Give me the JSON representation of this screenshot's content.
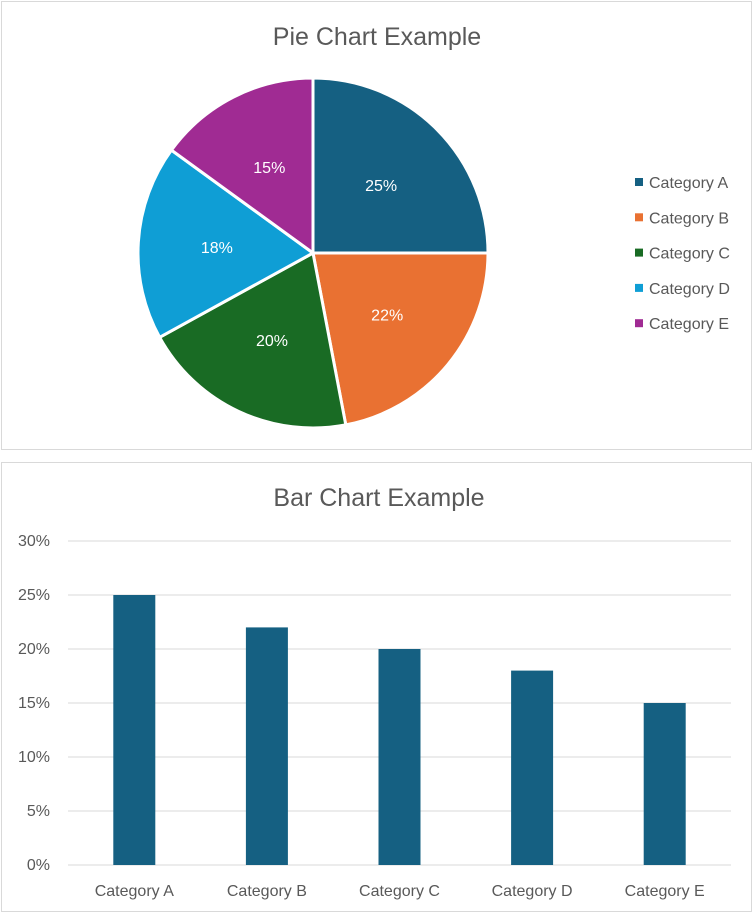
{
  "chart_data": [
    {
      "type": "pie",
      "title": "Pie Chart Example",
      "categories": [
        "Category A",
        "Category B",
        "Category C",
        "Category D",
        "Category E"
      ],
      "values": [
        25,
        22,
        20,
        18,
        15
      ],
      "data_labels": [
        "25%",
        "22%",
        "20%",
        "18%",
        "15%"
      ],
      "colors": [
        "#156082",
        "#E97132",
        "#196B24",
        "#0F9ED5",
        "#A02B93"
      ],
      "legend_position": "right",
      "start_angle_degrees": 0,
      "direction": "clockwise"
    },
    {
      "type": "bar",
      "title": "Bar Chart Example",
      "categories": [
        "Category A",
        "Category B",
        "Category C",
        "Category D",
        "Category E"
      ],
      "values": [
        25,
        22,
        20,
        18,
        15
      ],
      "ylim": [
        0,
        30
      ],
      "yticks": [
        0,
        5,
        10,
        15,
        20,
        25,
        30
      ],
      "ytick_labels": [
        "0%",
        "5%",
        "10%",
        "15%",
        "20%",
        "25%",
        "30%"
      ],
      "bar_color": "#156082",
      "grid": true,
      "xlabel": "",
      "ylabel": ""
    }
  ]
}
